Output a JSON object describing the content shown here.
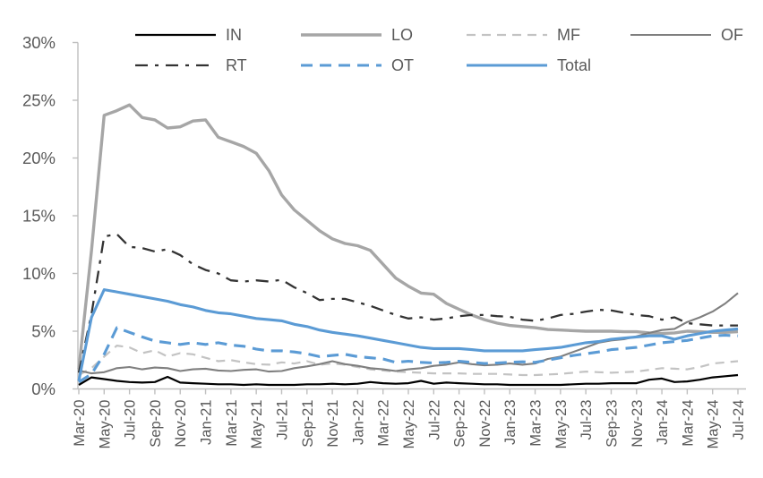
{
  "chart_data": {
    "type": "line",
    "title": "",
    "xlabel": "",
    "ylabel": "",
    "y_axis": {
      "min": 0,
      "max": 30,
      "step": 5,
      "tick_labels": [
        "0%",
        "5%",
        "10%",
        "15%",
        "20%",
        "25%",
        "30%"
      ],
      "unit": "%"
    },
    "x": [
      "Mar-20",
      "Apr-20",
      "May-20",
      "Jun-20",
      "Jul-20",
      "Aug-20",
      "Sep-20",
      "Oct-20",
      "Nov-20",
      "Dec-20",
      "Jan-21",
      "Feb-21",
      "Mar-21",
      "Apr-21",
      "May-21",
      "Jun-21",
      "Jul-21",
      "Aug-21",
      "Sep-21",
      "Oct-21",
      "Nov-21",
      "Dec-21",
      "Jan-22",
      "Feb-22",
      "Mar-22",
      "Apr-22",
      "May-22",
      "Jun-22",
      "Jul-22",
      "Aug-22",
      "Sep-22",
      "Oct-22",
      "Nov-22",
      "Dec-22",
      "Jan-23",
      "Feb-23",
      "Mar-23",
      "Apr-23",
      "May-23",
      "Jun-23",
      "Jul-23",
      "Aug-23",
      "Sep-23",
      "Oct-23",
      "Nov-23",
      "Dec-23",
      "Jan-24",
      "Feb-24",
      "Mar-24",
      "Apr-24",
      "May-24",
      "Jun-24",
      "Jul-24"
    ],
    "x_tick_labels": [
      "Mar-20",
      "May-20",
      "Jul-20",
      "Sep-20",
      "Nov-20",
      "Jan-21",
      "Mar-21",
      "May-21",
      "Jul-21",
      "Sep-21",
      "Nov-21",
      "Jan-22",
      "Mar-22",
      "May-22",
      "Jul-22",
      "Sep-22",
      "Nov-22",
      "Jan-23",
      "Mar-23",
      "May-23",
      "Jul-23",
      "Sep-23",
      "Nov-23",
      "Jan-24",
      "Mar-24",
      "May-24",
      "Jul-24"
    ],
    "legend_position": "top",
    "grid": false,
    "series": [
      {
        "name": "IN",
        "color": "#000000",
        "dash": "",
        "width": 2.2,
        "values": [
          0.35,
          1.0,
          0.85,
          0.7,
          0.6,
          0.55,
          0.6,
          1.05,
          0.55,
          0.5,
          0.45,
          0.4,
          0.4,
          0.35,
          0.4,
          0.35,
          0.35,
          0.35,
          0.4,
          0.4,
          0.45,
          0.4,
          0.45,
          0.6,
          0.5,
          0.45,
          0.5,
          0.7,
          0.45,
          0.55,
          0.5,
          0.45,
          0.4,
          0.4,
          0.35,
          0.35,
          0.35,
          0.35,
          0.35,
          0.4,
          0.45,
          0.45,
          0.5,
          0.5,
          0.5,
          0.8,
          0.9,
          0.6,
          0.65,
          0.8,
          1.0,
          1.1,
          1.2
        ]
      },
      {
        "name": "LO",
        "color": "#a6a6a6",
        "dash": "",
        "width": 3.4,
        "values": [
          1.7,
          12.0,
          23.7,
          24.1,
          24.6,
          23.5,
          23.3,
          22.6,
          22.7,
          23.2,
          23.3,
          21.8,
          21.4,
          21.0,
          20.4,
          18.9,
          16.8,
          15.5,
          14.6,
          13.7,
          13.0,
          12.6,
          12.4,
          12.0,
          10.8,
          9.6,
          8.9,
          8.3,
          8.2,
          7.4,
          6.9,
          6.4,
          6.0,
          5.7,
          5.5,
          5.4,
          5.3,
          5.15,
          5.1,
          5.05,
          5.0,
          5.0,
          5.0,
          4.95,
          4.95,
          4.85,
          4.8,
          4.85,
          5.0,
          4.95,
          4.9,
          4.9,
          4.95
        ]
      },
      {
        "name": "MF",
        "color": "#c3c3c3",
        "dash": "10 7",
        "width": 2.2,
        "values": [
          1.2,
          1.8,
          2.8,
          3.75,
          3.6,
          3.1,
          3.35,
          2.8,
          3.1,
          3.0,
          2.7,
          2.4,
          2.5,
          2.3,
          2.15,
          2.1,
          2.3,
          2.2,
          2.4,
          2.1,
          2.2,
          2.1,
          1.9,
          1.7,
          1.6,
          1.5,
          1.45,
          1.4,
          1.35,
          1.35,
          1.35,
          1.3,
          1.3,
          1.3,
          1.25,
          1.2,
          1.2,
          1.25,
          1.3,
          1.4,
          1.5,
          1.45,
          1.4,
          1.45,
          1.5,
          1.65,
          1.8,
          1.75,
          1.7,
          1.9,
          2.2,
          2.3,
          2.4
        ]
      },
      {
        "name": "OF",
        "color": "#7f7f7f",
        "dash": "",
        "width": 2.1,
        "values": [
          1.6,
          1.35,
          1.45,
          1.8,
          1.9,
          1.7,
          1.85,
          1.8,
          1.55,
          1.7,
          1.75,
          1.6,
          1.55,
          1.65,
          1.7,
          1.5,
          1.55,
          1.8,
          1.95,
          2.15,
          2.4,
          2.15,
          2.0,
          1.8,
          1.7,
          1.55,
          1.7,
          1.8,
          2.0,
          2.1,
          2.3,
          2.15,
          2.05,
          2.1,
          2.2,
          2.1,
          2.2,
          2.6,
          2.8,
          3.2,
          3.6,
          4.0,
          4.2,
          4.3,
          4.55,
          4.85,
          5.1,
          5.2,
          5.8,
          6.2,
          6.7,
          7.4,
          8.3
        ]
      },
      {
        "name": "RT",
        "color": "#333333",
        "dash": "14 8 4 8",
        "width": 2.3,
        "values": [
          1.4,
          6.5,
          13.2,
          13.4,
          12.3,
          12.2,
          11.9,
          12.1,
          11.6,
          10.8,
          10.3,
          10.0,
          9.4,
          9.3,
          9.4,
          9.3,
          9.45,
          8.8,
          8.3,
          7.7,
          7.8,
          7.8,
          7.5,
          7.2,
          6.8,
          6.4,
          6.1,
          6.2,
          6.0,
          6.1,
          6.3,
          6.4,
          6.4,
          6.3,
          6.25,
          6.0,
          5.9,
          6.1,
          6.4,
          6.5,
          6.7,
          6.85,
          6.8,
          6.6,
          6.4,
          6.3,
          6.0,
          6.2,
          5.7,
          5.6,
          5.5,
          5.5,
          5.5
        ]
      },
      {
        "name": "OT",
        "color": "#5b9bd5",
        "dash": "13 8",
        "width": 3.1,
        "values": [
          0.6,
          1.3,
          3.0,
          5.3,
          4.9,
          4.5,
          4.15,
          4.0,
          3.85,
          4.0,
          3.85,
          4.0,
          3.8,
          3.7,
          3.45,
          3.3,
          3.3,
          3.2,
          3.05,
          2.8,
          2.9,
          3.0,
          2.8,
          2.7,
          2.6,
          2.3,
          2.4,
          2.3,
          2.25,
          2.3,
          2.4,
          2.3,
          2.2,
          2.25,
          2.3,
          2.35,
          2.3,
          2.5,
          2.7,
          2.9,
          3.05,
          3.2,
          3.4,
          3.5,
          3.6,
          3.8,
          4.0,
          4.1,
          4.2,
          4.4,
          4.6,
          4.65,
          4.6
        ]
      },
      {
        "name": "Total",
        "color": "#5b9bd5",
        "dash": "",
        "width": 3.1,
        "values": [
          0.7,
          6.2,
          8.6,
          8.4,
          8.2,
          8.0,
          7.8,
          7.6,
          7.3,
          7.1,
          6.8,
          6.6,
          6.5,
          6.3,
          6.1,
          6.0,
          5.9,
          5.6,
          5.4,
          5.1,
          4.9,
          4.75,
          4.6,
          4.4,
          4.2,
          4.0,
          3.8,
          3.6,
          3.5,
          3.5,
          3.5,
          3.4,
          3.3,
          3.3,
          3.3,
          3.3,
          3.4,
          3.5,
          3.6,
          3.8,
          4.0,
          4.1,
          4.3,
          4.4,
          4.5,
          4.6,
          4.6,
          4.3,
          4.6,
          4.8,
          5.0,
          5.1,
          5.2
        ]
      }
    ]
  },
  "legend": {
    "rows": [
      [
        {
          "name": "IN"
        },
        {
          "name": "LO"
        },
        {
          "name": "MF"
        },
        {
          "name": "OF"
        }
      ],
      [
        {
          "name": "RT"
        },
        {
          "name": "OT"
        },
        {
          "name": "Total"
        }
      ]
    ]
  },
  "colors": {
    "axis_line": "#bfbfbf",
    "tick_label": "#595959",
    "legend_label": "#595959",
    "accent_blue": "#5b9bd5"
  }
}
